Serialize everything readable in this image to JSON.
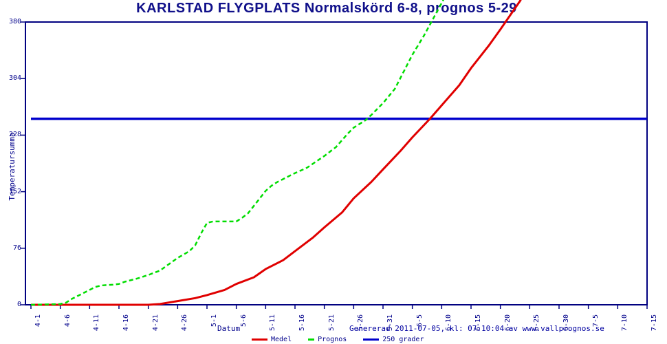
{
  "title": "KARLSTAD FLYGPLATS Normalskörd 6-8, prognos 5-29",
  "footer": {
    "generated": "Genererad 2011-07-05, kl: 07:10:04 av www.vallprognos.se"
  },
  "colors": {
    "frame": "#000080",
    "tick_text": "#00008b",
    "title_text": "#10108a",
    "footer_text": "#0000a0"
  },
  "chart_data": {
    "type": "line",
    "title": "KARLSTAD FLYGPLATS Normalskörd 6-8, prognos 5-29",
    "xlabel": "Datum",
    "ylabel": "Temperatursumma",
    "grid": false,
    "legend_position": "bottom-center",
    "frame_color": "#000080",
    "y_axis": {
      "range": [
        0,
        380
      ],
      "ticks": [
        0,
        76,
        152,
        228,
        304,
        380
      ]
    },
    "x_axis": {
      "start_date": "4-1",
      "tick_step_days": 5,
      "range_days": [
        0,
        105
      ],
      "tick_labels": [
        "4-1",
        "4-6",
        "4-11",
        "4-16",
        "4-21",
        "4-26",
        "5-1",
        "5-6",
        "5-11",
        "5-16",
        "5-21",
        "5-26",
        "5-31",
        "6-5",
        "6-10",
        "6-15",
        "6-20",
        "6-25",
        "6-30",
        "7-5",
        "7-10",
        "7-15"
      ]
    },
    "series": [
      {
        "name": "Medel",
        "color": "#e00000",
        "style": "solid",
        "width": 3,
        "points": [
          [
            0,
            0
          ],
          [
            20,
            0
          ],
          [
            22,
            1
          ],
          [
            25,
            5
          ],
          [
            28,
            9
          ],
          [
            30,
            13
          ],
          [
            33,
            20
          ],
          [
            35,
            28
          ],
          [
            38,
            37
          ],
          [
            40,
            48
          ],
          [
            43,
            60
          ],
          [
            45,
            72
          ],
          [
            48,
            90
          ],
          [
            50,
            104
          ],
          [
            53,
            124
          ],
          [
            55,
            143
          ],
          [
            58,
            165
          ],
          [
            60,
            182
          ],
          [
            63,
            207
          ],
          [
            65,
            225
          ],
          [
            68,
            250
          ],
          [
            70,
            268
          ],
          [
            73,
            295
          ],
          [
            75,
            318
          ],
          [
            78,
            348
          ],
          [
            80,
            370
          ],
          [
            83.5,
            410
          ]
        ]
      },
      {
        "name": "Prognos",
        "color": "#00dd00",
        "style": "dashed",
        "width": 2.5,
        "points": [
          [
            0,
            0
          ],
          [
            5,
            1
          ],
          [
            6,
            3
          ],
          [
            7,
            8
          ],
          [
            8,
            12
          ],
          [
            10,
            20
          ],
          [
            11,
            24
          ],
          [
            12,
            26
          ],
          [
            14,
            27
          ],
          [
            15,
            28
          ],
          [
            16,
            31
          ],
          [
            18,
            35
          ],
          [
            20,
            40
          ],
          [
            22,
            46
          ],
          [
            25,
            63
          ],
          [
            27,
            72
          ],
          [
            28,
            80
          ],
          [
            29,
            96
          ],
          [
            30,
            110
          ],
          [
            31,
            112
          ],
          [
            35,
            112
          ],
          [
            36,
            117
          ],
          [
            37,
            123
          ],
          [
            40,
            153
          ],
          [
            41,
            160
          ],
          [
            42,
            165
          ],
          [
            43,
            169
          ],
          [
            45,
            177
          ],
          [
            47,
            184
          ],
          [
            50,
            200
          ],
          [
            52,
            212
          ],
          [
            54,
            230
          ],
          [
            55,
            238
          ],
          [
            57,
            248
          ],
          [
            58,
            255
          ],
          [
            60,
            271
          ],
          [
            62,
            290
          ],
          [
            65,
            336
          ],
          [
            67,
            362
          ],
          [
            70.3,
            410
          ]
        ]
      },
      {
        "name": "250 grader",
        "color": "#0000cc",
        "style": "solid",
        "width": 3.5,
        "points": [
          [
            0,
            250
          ],
          [
            105,
            250
          ]
        ]
      }
    ]
  }
}
